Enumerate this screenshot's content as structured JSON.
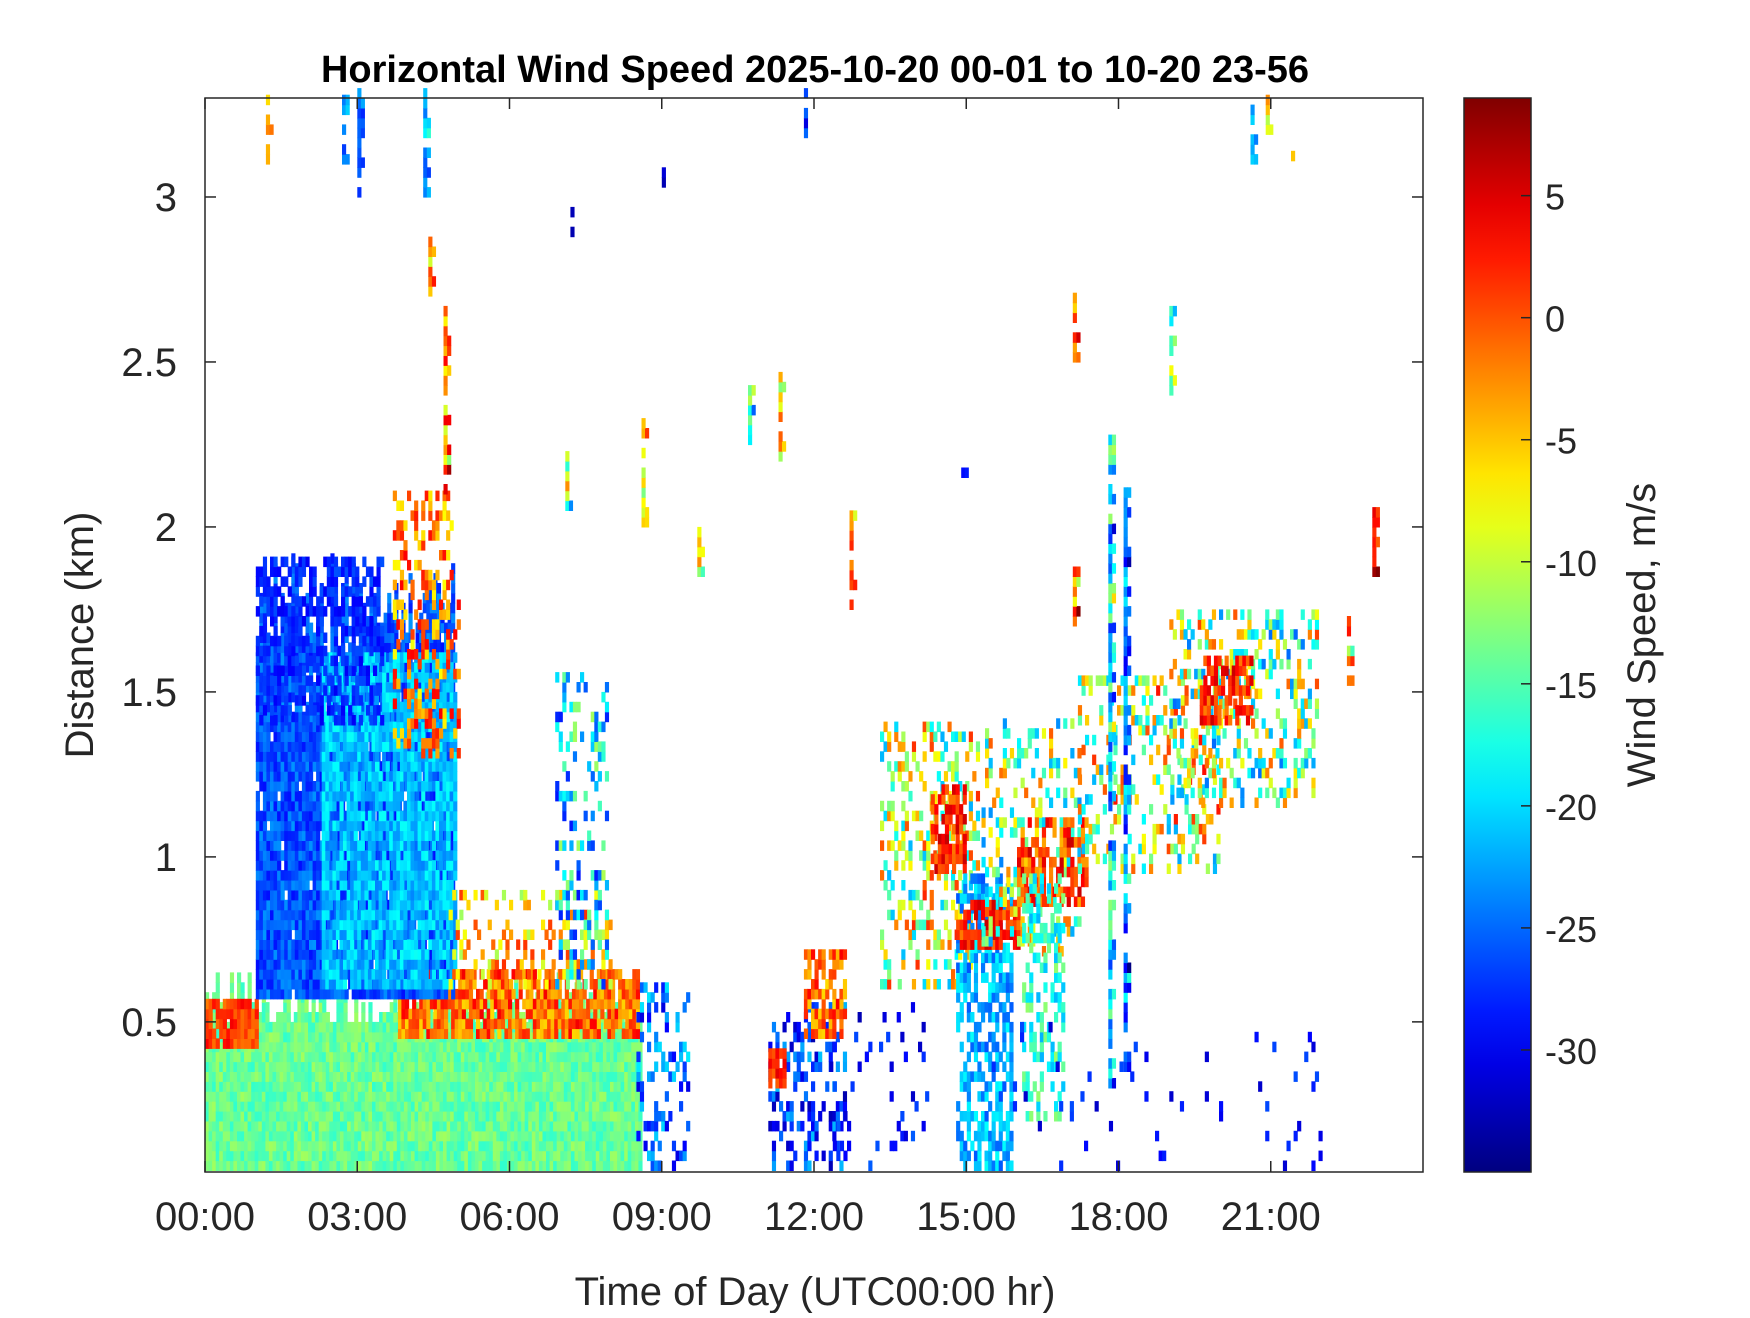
{
  "chart_data": {
    "type": "heatmap",
    "title": "Horizontal Wind Speed 2025-10-20 00-01 to 10-20 23-56",
    "xlabel": "Time of Day (UTC00:00 hr)",
    "ylabel": "Distance (km)",
    "colorbar_label": "Wind Speed, m/s",
    "xlim_hours": [
      0,
      24
    ],
    "ylim_km": [
      0.045,
      3.3
    ],
    "xticks": [
      {
        "value": 0,
        "label": "00:00"
      },
      {
        "value": 3,
        "label": "03:00"
      },
      {
        "value": 6,
        "label": "06:00"
      },
      {
        "value": 9,
        "label": "09:00"
      },
      {
        "value": 12,
        "label": "12:00"
      },
      {
        "value": 15,
        "label": "15:00"
      },
      {
        "value": 18,
        "label": "18:00"
      },
      {
        "value": 21,
        "label": "21:00"
      }
    ],
    "yticks": [
      {
        "value": 0.5,
        "label": "0.5"
      },
      {
        "value": 1,
        "label": "1"
      },
      {
        "value": 1.5,
        "label": "1.5"
      },
      {
        "value": 2,
        "label": "2"
      },
      {
        "value": 2.5,
        "label": "2.5"
      },
      {
        "value": 3,
        "label": "3"
      }
    ],
    "colorbar_range": [
      -35,
      9
    ],
    "colorbar_ticks": [
      {
        "value": 5,
        "label": "5"
      },
      {
        "value": 0,
        "label": "0"
      },
      {
        "value": -5,
        "label": "-5"
      },
      {
        "value": -10,
        "label": "-10"
      },
      {
        "value": -15,
        "label": "-15"
      },
      {
        "value": -20,
        "label": "-20"
      },
      {
        "value": -25,
        "label": "-25"
      },
      {
        "value": -30,
        "label": "-30"
      }
    ],
    "colormap": "jet",
    "regions": [
      {
        "t0": 0.0,
        "t1": 8.6,
        "d0": 0.05,
        "d1": 0.52,
        "v": -14,
        "jitter": 2.5,
        "density": 1.0,
        "topRaggedUp": 0.12,
        "topRaggedDown": 0.05,
        "topTo": 8.6
      },
      {
        "t0": 0.0,
        "t1": 1.0,
        "d0": 0.42,
        "d1": 0.57,
        "v": 1,
        "jitter": 3,
        "density": 0.9
      },
      {
        "t0": 3.8,
        "t1": 8.5,
        "d0": 0.45,
        "d1": 0.65,
        "v": -1,
        "jitter": 5,
        "density": 0.8
      },
      {
        "t0": 1.0,
        "t1": 4.9,
        "d0": 0.57,
        "d1": 1.75,
        "v": -26,
        "jitter": 3,
        "density": 0.95,
        "topRaggedUp": 0.15,
        "topRaggedDown": 0.2
      },
      {
        "t0": 2.3,
        "t1": 4.9,
        "d0": 0.6,
        "d1": 1.6,
        "v": -21,
        "jitter": 3,
        "density": 0.85
      },
      {
        "t0": 1.0,
        "t1": 3.5,
        "d0": 1.4,
        "d1": 1.9,
        "v": -28,
        "jitter": 2,
        "density": 0.5
      },
      {
        "t0": 3.7,
        "t1": 5.0,
        "d0": 1.3,
        "d1": 2.1,
        "v": -2,
        "jitter": 6,
        "density": 0.35
      },
      {
        "t0": 4.8,
        "t1": 8.0,
        "d0": 0.6,
        "d1": 0.9,
        "v": -5,
        "jitter": 7,
        "density": 0.25
      },
      {
        "t0": 6.9,
        "t1": 7.9,
        "d0": 0.6,
        "d1": 1.55,
        "v": -20,
        "jitter": 9,
        "density": 0.3
      },
      {
        "t0": 8.5,
        "t1": 9.5,
        "d0": 0.05,
        "d1": 0.6,
        "v": -25,
        "jitter": 6,
        "density": 0.25
      },
      {
        "t0": 11.1,
        "t1": 12.6,
        "d0": 0.05,
        "d1": 0.55,
        "v": -27,
        "jitter": 6,
        "density": 0.35
      },
      {
        "t0": 11.1,
        "t1": 11.4,
        "d0": 0.3,
        "d1": 0.42,
        "v": 2,
        "jitter": 3,
        "density": 0.8
      },
      {
        "t0": 11.8,
        "t1": 12.6,
        "d0": 0.45,
        "d1": 0.72,
        "v": -1,
        "jitter": 5,
        "density": 0.6
      },
      {
        "t0": 12.3,
        "t1": 14.2,
        "d0": 0.05,
        "d1": 0.55,
        "v": -29,
        "jitter": 4,
        "density": 0.09
      },
      {
        "t0": 13.3,
        "t1": 15.2,
        "d0": 0.6,
        "d1": 1.4,
        "v": -10,
        "jitter": 12,
        "density": 0.3
      },
      {
        "t0": 14.3,
        "t1": 15.0,
        "d0": 0.95,
        "d1": 1.2,
        "v": 2,
        "jitter": 4,
        "density": 0.6
      },
      {
        "t0": 14.8,
        "t1": 15.9,
        "d0": 0.05,
        "d1": 0.95,
        "v": -22,
        "jitter": 4,
        "density": 0.6
      },
      {
        "t0": 14.8,
        "t1": 16.0,
        "d0": 0.72,
        "d1": 0.85,
        "v": 2,
        "jitter": 4,
        "density": 0.7
      },
      {
        "t0": 15.3,
        "t1": 17.2,
        "d0": 0.7,
        "d1": 1.4,
        "v": -12,
        "jitter": 12,
        "density": 0.3
      },
      {
        "t0": 16.0,
        "t1": 17.4,
        "d0": 0.85,
        "d1": 1.1,
        "v": 1,
        "jitter": 5,
        "density": 0.55
      },
      {
        "t0": 16.1,
        "t1": 16.9,
        "d0": 0.2,
        "d1": 0.95,
        "v": -17,
        "jitter": 5,
        "density": 0.45
      },
      {
        "t0": 17.2,
        "t1": 20.0,
        "d0": 0.95,
        "d1": 1.55,
        "v": -10,
        "jitter": 13,
        "density": 0.3
      },
      {
        "t0": 19.0,
        "t1": 21.9,
        "d0": 1.15,
        "d1": 1.75,
        "v": -12,
        "jitter": 13,
        "density": 0.35
      },
      {
        "t0": 19.6,
        "t1": 20.6,
        "d0": 1.4,
        "d1": 1.6,
        "v": 2,
        "jitter": 4,
        "density": 0.7
      },
      {
        "t0": 15.5,
        "t1": 22.0,
        "d0": 0.05,
        "d1": 0.5,
        "v": -29,
        "jitter": 3,
        "density": 0.03
      }
    ],
    "streaks": [
      {
        "t": 1.2,
        "d0": 3.1,
        "d1": 3.3,
        "v": -5,
        "jitter": 3
      },
      {
        "t": 2.7,
        "d0": 3.1,
        "d1": 3.3,
        "v": -24,
        "jitter": 3
      },
      {
        "t": 3.0,
        "d0": 3.0,
        "d1": 3.3,
        "v": -25,
        "jitter": 3
      },
      {
        "t": 4.4,
        "d0": 2.7,
        "d1": 2.85,
        "v": -4,
        "jitter": 6
      },
      {
        "t": 4.7,
        "d0": 2.1,
        "d1": 2.65,
        "v": -2,
        "jitter": 8
      },
      {
        "t": 4.3,
        "d0": 3.0,
        "d1": 3.3,
        "v": -22,
        "jitter": 4
      },
      {
        "t": 7.2,
        "d0": 2.88,
        "d1": 2.95,
        "v": -32,
        "jitter": 1
      },
      {
        "t": 7.1,
        "d0": 2.05,
        "d1": 2.2,
        "v": -10,
        "jitter": 8
      },
      {
        "t": 8.6,
        "d0": 2.0,
        "d1": 2.3,
        "v": -8,
        "jitter": 8
      },
      {
        "t": 9.0,
        "d0": 3.03,
        "d1": 3.08,
        "v": -32,
        "jitter": 1
      },
      {
        "t": 9.7,
        "d0": 1.85,
        "d1": 2.0,
        "v": -6,
        "jitter": 8
      },
      {
        "t": 10.7,
        "d0": 2.25,
        "d1": 2.4,
        "v": -14,
        "jitter": 8
      },
      {
        "t": 11.3,
        "d0": 2.2,
        "d1": 2.45,
        "v": -6,
        "jitter": 8
      },
      {
        "t": 11.8,
        "d0": 3.15,
        "d1": 3.3,
        "v": -28,
        "jitter": 3
      },
      {
        "t": 12.7,
        "d0": 1.75,
        "d1": 2.05,
        "v": 0,
        "jitter": 6
      },
      {
        "t": 14.9,
        "d0": 2.12,
        "d1": 2.16,
        "v": -30,
        "jitter": 1
      },
      {
        "t": 17.1,
        "d0": 2.5,
        "d1": 2.7,
        "v": 0,
        "jitter": 6
      },
      {
        "t": 17.1,
        "d0": 1.7,
        "d1": 1.9,
        "v": -5,
        "jitter": 8
      },
      {
        "t": 17.8,
        "d0": 0.3,
        "d1": 2.25,
        "v": -20,
        "jitter": 8
      },
      {
        "t": 18.1,
        "d0": 0.35,
        "d1": 2.1,
        "v": -24,
        "jitter": 6
      },
      {
        "t": 19.0,
        "d0": 2.4,
        "d1": 2.65,
        "v": -14,
        "jitter": 8
      },
      {
        "t": 20.6,
        "d0": 3.1,
        "d1": 3.3,
        "v": -20,
        "jitter": 4
      },
      {
        "t": 20.9,
        "d0": 3.1,
        "d1": 3.3,
        "v": -6,
        "jitter": 6
      },
      {
        "t": 21.4,
        "d0": 3.08,
        "d1": 3.12,
        "v": -7,
        "jitter": 2
      },
      {
        "t": 22.5,
        "d0": 1.52,
        "d1": 1.72,
        "v": -5,
        "jitter": 9
      },
      {
        "t": 23.0,
        "d0": 1.85,
        "d1": 2.05,
        "v": 5,
        "jitter": 4
      }
    ]
  }
}
